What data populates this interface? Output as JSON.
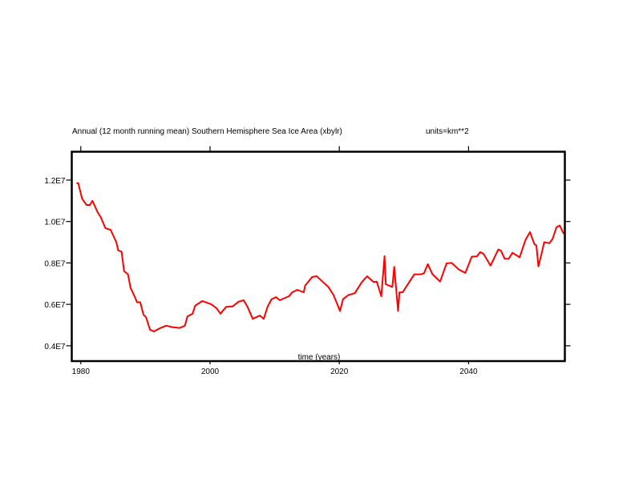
{
  "chart_data": {
    "type": "line",
    "title": "Annual (12 month running mean) Southern Hemisphere Sea Ice Area (xbylr)",
    "units": "units=km**2",
    "xlabel": "time (years)",
    "ylabel": "",
    "xlim": [
      1978.6,
      2054.9
    ],
    "ylim": [
      0.326,
      1.337
    ],
    "y_unit_note": "values in units of 1E7 km**2",
    "grid": false,
    "x_ticks": [
      1980,
      2000,
      2020,
      2040
    ],
    "x_tick_labels": [
      "1980",
      "2000",
      "2020",
      "2040"
    ],
    "y_ticks": [
      1.2,
      1.0,
      0.8,
      0.6,
      0.4
    ],
    "y_tick_labels": [
      "1.2E7",
      "1.0E7",
      "0.8E7",
      "0.6E7",
      "0.4E7"
    ],
    "series": [
      {
        "name": "Southern Hemisphere Sea Ice Area",
        "color": "#ff0000",
        "x": [
          1979.4,
          1979.6,
          1980.2,
          1980.9,
          1981.4,
          1981.8,
          1982.6,
          1983.1,
          1983.8,
          1984.6,
          1985.5,
          1985.8,
          1986.3,
          1986.7,
          1987.3,
          1987.7,
          1988.3,
          1988.7,
          1989.2,
          1989.7,
          1990.1,
          1990.7,
          1991.3,
          1992.2,
          1993.2,
          1994.2,
          1995.3,
          1996.1,
          1996.5,
          1997.3,
          1997.7,
          1998.8,
          2000.2,
          2001.0,
          2001.6,
          2002.5,
          2003.5,
          2004.4,
          2005.2,
          2005.8,
          2006.6,
          2007.7,
          2008.3,
          2008.9,
          2009.5,
          2010.2,
          2010.8,
          2012.2,
          2012.7,
          2013.5,
          2014.5,
          2014.7,
          2015.8,
          2016.5,
          2017.4,
          2018.3,
          2019.1,
          2019.7,
          2020.1,
          2020.6,
          2021.4,
          2022.4,
          2023.5,
          2024.3,
          2025.3,
          2025.8,
          2026.5,
          2027.0,
          2027.2,
          2028.2,
          2028.5,
          2029.1,
          2029.3,
          2029.8,
          2031.6,
          2032.6,
          2033.1,
          2033.7,
          2034.4,
          2035.6,
          2036.6,
          2037.4,
          2038.5,
          2039.5,
          2040.5,
          2041.3,
          2041.8,
          2042.3,
          2043.4,
          2044.6,
          2045.0,
          2045.6,
          2046.2,
          2046.8,
          2047.9,
          2048.8,
          2049.5,
          2050.2,
          2050.5,
          2050.8,
          2051.3,
          2051.7,
          2052.5,
          2053.0,
          2053.6,
          2054.1,
          2054.7
        ],
        "y": [
          1.185,
          1.185,
          1.11,
          1.08,
          1.08,
          1.1,
          1.045,
          1.02,
          0.968,
          0.96,
          0.9,
          0.86,
          0.855,
          0.76,
          0.745,
          0.68,
          0.64,
          0.61,
          0.61,
          0.55,
          0.538,
          0.478,
          0.469,
          0.484,
          0.497,
          0.49,
          0.486,
          0.497,
          0.542,
          0.555,
          0.594,
          0.616,
          0.6,
          0.581,
          0.555,
          0.588,
          0.59,
          0.613,
          0.62,
          0.588,
          0.53,
          0.546,
          0.53,
          0.588,
          0.624,
          0.635,
          0.62,
          0.639,
          0.658,
          0.67,
          0.658,
          0.69,
          0.732,
          0.736,
          0.71,
          0.684,
          0.646,
          0.6,
          0.568,
          0.626,
          0.645,
          0.654,
          0.708,
          0.736,
          0.708,
          0.71,
          0.639,
          0.833,
          0.697,
          0.684,
          0.781,
          0.568,
          0.658,
          0.658,
          0.745,
          0.745,
          0.75,
          0.794,
          0.746,
          0.71,
          0.798,
          0.8,
          0.768,
          0.752,
          0.83,
          0.832,
          0.852,
          0.845,
          0.787,
          0.865,
          0.86,
          0.82,
          0.82,
          0.849,
          0.827,
          0.91,
          0.949,
          0.89,
          0.885,
          0.783,
          0.845,
          0.9,
          0.895,
          0.916,
          0.972,
          0.981,
          0.942
        ]
      }
    ]
  }
}
